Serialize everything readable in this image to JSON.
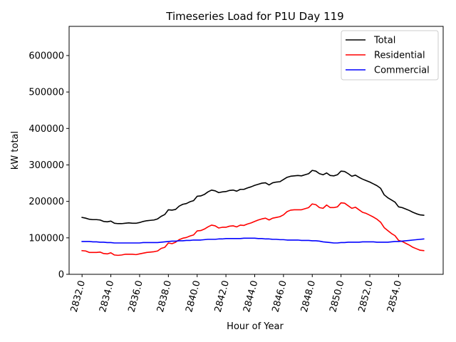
{
  "chart_data": {
    "type": "line",
    "title": "Timeseries Load for P1U   Day 119",
    "xlabel": "Hour of Year",
    "ylabel": "kW total",
    "xlim": [
      2831.1,
      2857.1
    ],
    "ylim": [
      0,
      680000
    ],
    "xticks": [
      2832,
      2834,
      2836,
      2838,
      2840,
      2842,
      2844,
      2846,
      2848,
      2850,
      2852,
      2854
    ],
    "xtick_labels": [
      "2832.0",
      "2834.0",
      "2836.0",
      "2838.0",
      "2840.0",
      "2842.0",
      "2844.0",
      "2846.0",
      "2848.0",
      "2850.0",
      "2852.0",
      "2854.0"
    ],
    "yticks": [
      0,
      100000,
      200000,
      300000,
      400000,
      500000,
      600000
    ],
    "ytick_labels": [
      "0",
      "100000",
      "200000",
      "300000",
      "400000",
      "500000",
      "600000"
    ],
    "grid": false,
    "legend_position": "top-right",
    "x": [
      2832.0,
      2832.25,
      2832.5,
      2832.75,
      2833.0,
      2833.25,
      2833.5,
      2833.75,
      2834.0,
      2834.25,
      2834.5,
      2834.75,
      2835.0,
      2835.25,
      2835.5,
      2835.75,
      2836.0,
      2836.25,
      2836.5,
      2836.75,
      2837.0,
      2837.25,
      2837.5,
      2837.75,
      2838.0,
      2838.25,
      2838.5,
      2838.75,
      2839.0,
      2839.25,
      2839.5,
      2839.75,
      2840.0,
      2840.25,
      2840.5,
      2840.75,
      2841.0,
      2841.25,
      2841.5,
      2841.75,
      2842.0,
      2842.25,
      2842.5,
      2842.75,
      2843.0,
      2843.25,
      2843.5,
      2843.75,
      2844.0,
      2844.25,
      2844.5,
      2844.75,
      2845.0,
      2845.25,
      2845.5,
      2845.75,
      2846.0,
      2846.25,
      2846.5,
      2846.75,
      2847.0,
      2847.25,
      2847.5,
      2847.75,
      2848.0,
      2848.25,
      2848.5,
      2848.75,
      2849.0,
      2849.25,
      2849.5,
      2849.75,
      2850.0,
      2850.25,
      2850.5,
      2850.75,
      2851.0,
      2851.25,
      2851.5,
      2851.75,
      2852.0,
      2852.25,
      2852.5,
      2852.75,
      2853.0,
      2853.25,
      2853.5,
      2853.75,
      2854.0,
      2854.25,
      2854.5,
      2854.75,
      2855.0,
      2855.25,
      2855.5,
      2855.75
    ],
    "series": [
      {
        "name": "Total",
        "color": "#000000",
        "values": [
          156000,
          154000,
          151000,
          150000,
          150000,
          149000,
          145000,
          144000,
          146000,
          140000,
          139000,
          139000,
          140000,
          141000,
          140000,
          140000,
          142000,
          145000,
          147000,
          148000,
          149000,
          152000,
          159000,
          164000,
          177000,
          176000,
          178000,
          187000,
          192000,
          194000,
          199000,
          202000,
          214000,
          215000,
          219000,
          226000,
          231000,
          229000,
          224000,
          226000,
          227000,
          230000,
          231000,
          228000,
          233000,
          233000,
          237000,
          240000,
          244000,
          247000,
          250000,
          251000,
          245000,
          251000,
          253000,
          254000,
          260000,
          266000,
          269000,
          270000,
          271000,
          270000,
          273000,
          276000,
          285000,
          283000,
          276000,
          273000,
          278000,
          271000,
          270000,
          273000,
          283000,
          282000,
          276000,
          269000,
          272000,
          266000,
          261000,
          257000,
          253000,
          248000,
          243000,
          236000,
          218000,
          210000,
          204000,
          198000,
          185000,
          183000,
          179000,
          175000,
          170000,
          166000,
          163000,
          162000
        ]
      },
      {
        "name": "Residential",
        "color": "#ff0000",
        "values": [
          65000,
          64000,
          60000,
          60000,
          60000,
          61000,
          57000,
          56000,
          59000,
          53000,
          52000,
          53000,
          55000,
          55000,
          55000,
          54000,
          56000,
          58000,
          60000,
          61000,
          62000,
          64000,
          71000,
          74000,
          86000,
          84000,
          88000,
          95000,
          99000,
          101000,
          105000,
          108000,
          119000,
          120000,
          124000,
          130000,
          135000,
          133000,
          127000,
          129000,
          129000,
          132000,
          133000,
          130000,
          135000,
          134000,
          138000,
          141000,
          145000,
          149000,
          152000,
          154000,
          149000,
          154000,
          156000,
          158000,
          163000,
          172000,
          176000,
          177000,
          177000,
          177000,
          180000,
          183000,
          193000,
          191000,
          183000,
          181000,
          190000,
          183000,
          183000,
          185000,
          196000,
          195000,
          188000,
          181000,
          184000,
          177000,
          170000,
          167000,
          162000,
          157000,
          151000,
          143000,
          128000,
          120000,
          112000,
          106000,
          93000,
          90000,
          85000,
          80000,
          74000,
          70000,
          66000,
          65000
        ]
      },
      {
        "name": "Commercial",
        "color": "#0000ff",
        "values": [
          90000,
          90000,
          90000,
          89000,
          89000,
          88000,
          88000,
          87000,
          87000,
          86000,
          86000,
          86000,
          86000,
          86000,
          86000,
          86000,
          86000,
          87000,
          87000,
          87000,
          87000,
          87000,
          88000,
          89000,
          90000,
          91000,
          91000,
          92000,
          92000,
          93000,
          93000,
          94000,
          94000,
          94000,
          95000,
          96000,
          96000,
          96000,
          97000,
          97000,
          98000,
          98000,
          98000,
          98000,
          98000,
          99000,
          99000,
          99000,
          99000,
          98000,
          98000,
          97000,
          97000,
          96000,
          96000,
          95000,
          95000,
          94000,
          94000,
          94000,
          94000,
          93000,
          93000,
          93000,
          92000,
          92000,
          91000,
          89000,
          88000,
          87000,
          86000,
          86000,
          87000,
          87000,
          88000,
          88000,
          88000,
          88000,
          89000,
          89000,
          89000,
          89000,
          88000,
          88000,
          88000,
          88000,
          89000,
          90000,
          90000,
          91000,
          92000,
          93000,
          94000,
          95000,
          96000,
          97000
        ]
      }
    ]
  }
}
